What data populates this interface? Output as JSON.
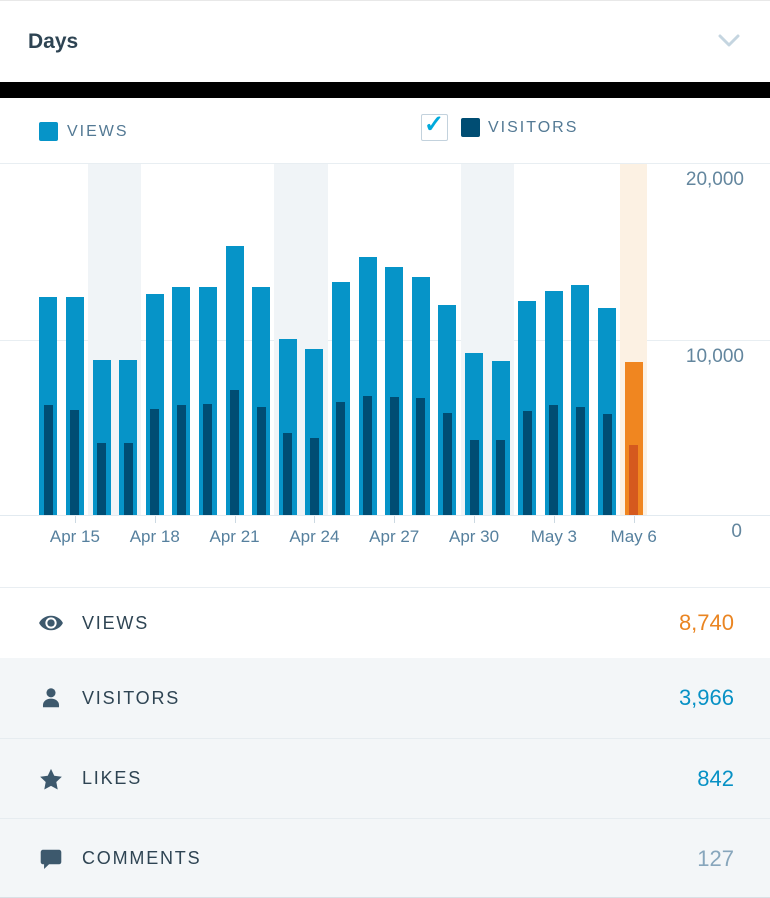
{
  "header": {
    "title": "Days"
  },
  "legend": {
    "views": {
      "label": "VIEWS",
      "swatch_color": "#0694c8"
    },
    "visitors": {
      "label": "VISITORS",
      "swatch_color": "#004d73",
      "checkbox_checked": true,
      "check_glyph": "✓"
    }
  },
  "chart_data": {
    "type": "bar",
    "title": "",
    "categories": [
      "Apr 14",
      "Apr 15",
      "Apr 16",
      "Apr 17",
      "Apr 18",
      "Apr 19",
      "Apr 20",
      "Apr 21",
      "Apr 22",
      "Apr 23",
      "Apr 24",
      "Apr 25",
      "Apr 26",
      "Apr 27",
      "Apr 28",
      "Apr 29",
      "Apr 30",
      "May 1",
      "May 2",
      "May 3",
      "May 4",
      "May 5",
      "May 6"
    ],
    "series": [
      {
        "name": "Views",
        "color": "#0694c8",
        "today_color": "#f08620",
        "values": [
          12400,
          12400,
          8850,
          8850,
          12600,
          13000,
          13000,
          15350,
          13000,
          10000,
          9450,
          13300,
          14700,
          14150,
          13550,
          11950,
          9250,
          8800,
          12200,
          12750,
          13100,
          11800,
          8740
        ]
      },
      {
        "name": "Visitors",
        "color": "#004d73",
        "today_color": "#d5591e",
        "values": [
          6250,
          6000,
          4100,
          4100,
          6050,
          6250,
          6350,
          7100,
          6150,
          4650,
          4400,
          6450,
          6800,
          6700,
          6650,
          5800,
          4300,
          4300,
          5900,
          6250,
          6150,
          5750,
          3966
        ]
      }
    ],
    "x_tick_labels": [
      "Apr 15",
      "Apr 18",
      "Apr 21",
      "Apr 24",
      "Apr 27",
      "Apr 30",
      "May 3",
      "May 6"
    ],
    "x_tick_indices": [
      1,
      4,
      7,
      10,
      13,
      16,
      19,
      22
    ],
    "ylim": [
      0,
      20000
    ],
    "ytick_labels": [
      "20,000",
      "10,000",
      "0"
    ],
    "weekend_indices": [
      2,
      3,
      9,
      10,
      16,
      17
    ],
    "today_index": 22,
    "weekend_band_color": "#f0f4f7",
    "today_band_color": "#fcf1e3",
    "grid": true,
    "legend_position": "top"
  },
  "summary": {
    "rows": [
      {
        "id": "views",
        "icon": "eye-icon",
        "label": "VIEWS",
        "value": "8,740",
        "value_color": "#ea8522"
      },
      {
        "id": "visitors",
        "icon": "person-icon",
        "label": "VISITORS",
        "value": "3,966",
        "value_color": "#0791c5"
      },
      {
        "id": "likes",
        "icon": "star-icon",
        "label": "LIKES",
        "value": "842",
        "value_color": "#0791c5"
      },
      {
        "id": "comments",
        "icon": "comment-icon",
        "label": "COMMENTS",
        "value": "127",
        "value_color": "#87a6bc"
      }
    ]
  }
}
